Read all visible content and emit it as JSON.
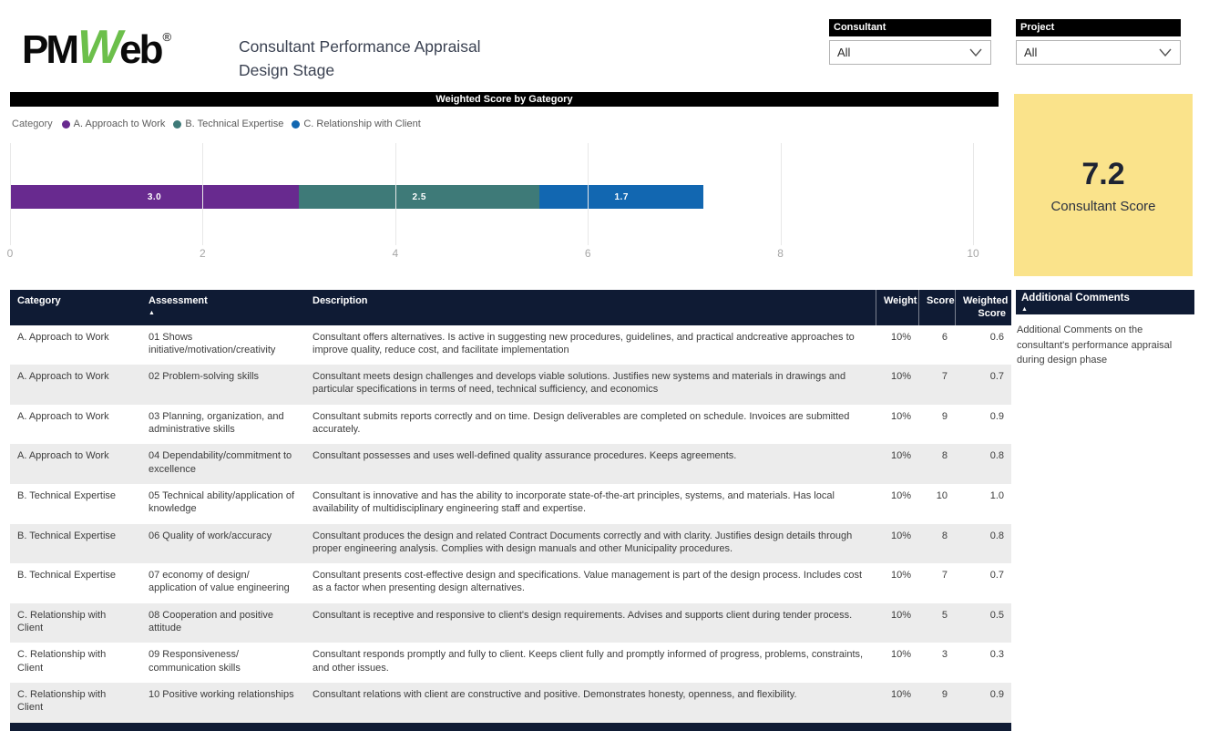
{
  "logo": {
    "pm": "PM",
    "w": "W",
    "eb": "eb",
    "reg": "®"
  },
  "header": {
    "title_line1": "Consultant Performance Appraisal",
    "title_line2": "Design Stage"
  },
  "filters": {
    "consultant": {
      "label": "Consultant",
      "value": "All"
    },
    "project": {
      "label": "Project",
      "value": "All"
    }
  },
  "chart_data": {
    "type": "bar",
    "orientation": "horizontal",
    "stacked": true,
    "title": "Weighted Score by Gategory",
    "legend_title": "Category",
    "legend_position": "top-left",
    "series": [
      {
        "name": "A. Approach to Work",
        "value": 3.0,
        "label": "3.0",
        "color": "#682a8f"
      },
      {
        "name": "B. Technical Expertise",
        "value": 2.5,
        "label": "2.5",
        "color": "#3e7a78"
      },
      {
        "name": "C. Relationship with Client",
        "value": 1.7,
        "label": "1.7",
        "color": "#1267b1"
      }
    ],
    "total": 7.2,
    "xlim": [
      0,
      10
    ],
    "x_ticks": [
      "0",
      "2",
      "4",
      "6",
      "8",
      "10"
    ],
    "grid": true
  },
  "score_card": {
    "value": "7.2",
    "label": "Consultant Score",
    "bg_color": "#fae38b"
  },
  "table": {
    "columns": [
      "Category",
      "Assessment",
      "Description",
      "Weight",
      "Score",
      "Weighted Score"
    ],
    "sorted_column": "Assessment",
    "rows": [
      {
        "category": "A. Approach to Work",
        "assessment": "01 Shows initiative/motivation/creativity",
        "description": "Consultant offers alternatives. Is active in suggesting new procedures, guidelines, and practical andcreative approaches to improve quality, reduce cost, and facilitate implementation",
        "weight": "10%",
        "score": "6",
        "weighted_score": "0.6"
      },
      {
        "category": "A. Approach to Work",
        "assessment": "02 Problem-solving skills",
        "description": "Consultant meets design challenges and develops viable solutions. Justifies new systems and materials in drawings and particular specifications in terms of need, technical sufficiency, and economics",
        "weight": "10%",
        "score": "7",
        "weighted_score": "0.7"
      },
      {
        "category": "A. Approach to Work",
        "assessment": "03 Planning, organization, and administrative skills",
        "description": "Consultant submits reports correctly and on time. Design deliverables are completed on schedule. Invoices are submitted accurately.",
        "weight": "10%",
        "score": "9",
        "weighted_score": "0.9"
      },
      {
        "category": "A. Approach to Work",
        "assessment": "04 Dependability/commitment to excellence",
        "description": "Consultant possesses and uses well-defined quality assurance procedures. Keeps agreements.",
        "weight": "10%",
        "score": "8",
        "weighted_score": "0.8"
      },
      {
        "category": "B. Technical Expertise",
        "assessment": "05 Technical ability/application of knowledge",
        "description": "Consultant is innovative and has the ability to incorporate state-of-the-art principles, systems, and materials. Has local availability of multidisciplinary engineering staff and expertise.",
        "weight": "10%",
        "score": "10",
        "weighted_score": "1.0"
      },
      {
        "category": "B. Technical Expertise",
        "assessment": "06 Quality of work/accuracy",
        "description": "Consultant produces the design and related Contract Documents correctly and with clarity. Justifies design details through proper engineering analysis. Complies with design manuals and other Municipality procedures.",
        "weight": "10%",
        "score": "8",
        "weighted_score": "0.8"
      },
      {
        "category": "B. Technical Expertise",
        "assessment": "07 economy of design/ application of value engineering",
        "description": "Consultant presents cost-effective design and specifications. Value management is part of the design process. Includes cost as a factor when presenting design alternatives.",
        "weight": "10%",
        "score": "7",
        "weighted_score": "0.7"
      },
      {
        "category": "C. Relationship with Client",
        "assessment": "08 Cooperation and positive attitude",
        "description": "Consultant is receptive and responsive to client's design requirements. Advises and supports client during tender process.",
        "weight": "10%",
        "score": "5",
        "weighted_score": "0.5"
      },
      {
        "category": "C. Relationship with Client",
        "assessment": "09 Responsiveness/ communication skills",
        "description": "Consultant responds promptly and fully to client. Keeps client fully and promptly informed of progress, problems, constraints, and other issues.",
        "weight": "10%",
        "score": "3",
        "weighted_score": "0.3"
      },
      {
        "category": "C. Relationship with Client",
        "assessment": "10 Positive working relationships",
        "description": "Consultant relations with client are constructive and positive. Demonstrates honesty, openness, and flexibility.",
        "weight": "10%",
        "score": "9",
        "weighted_score": "0.9"
      }
    ]
  },
  "comments_panel": {
    "header": "Additional Comments",
    "body": "Additional Comments on the consultant's performance appraisal during design phase"
  }
}
